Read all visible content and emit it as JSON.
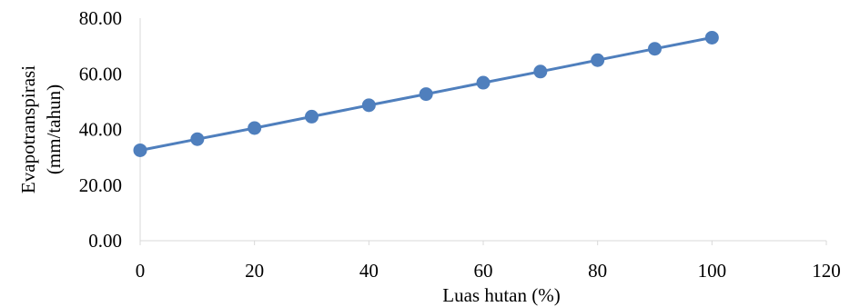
{
  "chart_data": {
    "type": "scatter",
    "xlabel": "Luas hutan (%)",
    "ylabel_lines": [
      "Evapotranspirasi",
      "(mm/tahun)"
    ],
    "xlim": [
      0,
      120
    ],
    "ylim": [
      0,
      80
    ],
    "x_ticks": [
      "0",
      "20",
      "40",
      "60",
      "80",
      "100",
      "120"
    ],
    "y_ticks": [
      "0.00",
      "20.00",
      "40.00",
      "60.00",
      "80.00"
    ],
    "grid": false,
    "legend": "none",
    "series": [
      {
        "x": [
          0,
          10,
          20,
          30,
          40,
          50,
          60,
          70,
          80,
          90,
          100
        ],
        "y": [
          32.5,
          36.5,
          40.5,
          44.6,
          48.7,
          52.7,
          56.8,
          60.8,
          64.9,
          69.0,
          73.0
        ],
        "color": "#4F7FBD",
        "marker": "circle",
        "line": true
      }
    ]
  }
}
